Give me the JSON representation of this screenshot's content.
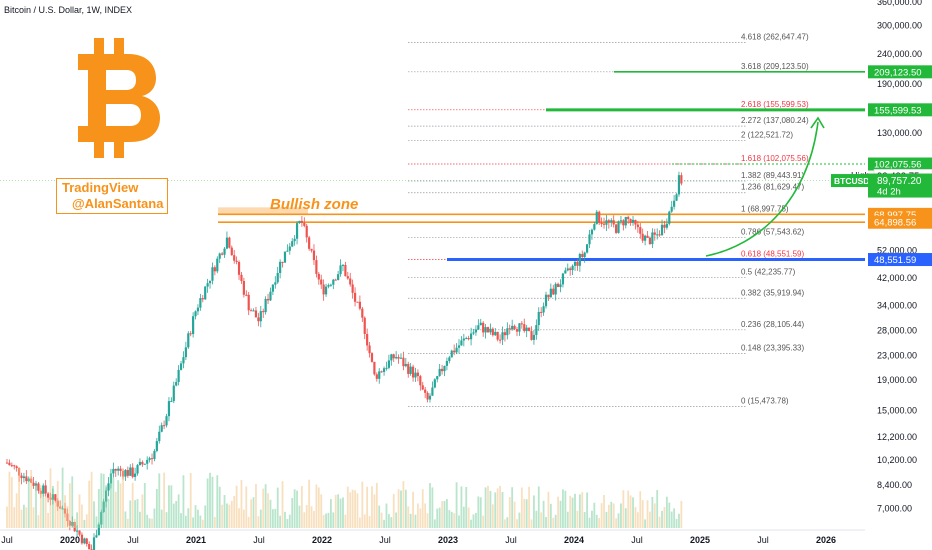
{
  "header": {
    "title": "Bitcoin / U.S. Dollar, 1W, INDEX"
  },
  "watermark": {
    "line1": "TradingView",
    "line2": "@AlanSantana"
  },
  "annotations": {
    "zone_label": "Bullish zone"
  },
  "colors": {
    "up": "#26a69a",
    "down": "#ef5350",
    "accent": "#f7931a",
    "target": "#22b83a",
    "support": "#2962ff",
    "fib_red": "#f23645"
  },
  "chart_data": {
    "type": "candlestick",
    "title": "Bitcoin / U.S. Dollar, 1W, INDEX",
    "scale": "log",
    "ylim": [
      6400,
      360000
    ],
    "x_ticks": [
      "Jul",
      "2020",
      "Jul",
      "2021",
      "Jul",
      "2022",
      "Jul",
      "2023",
      "Jul",
      "2024",
      "Jul",
      "2025",
      "Jul",
      "2026"
    ],
    "y_ticks": [
      "360,000.00",
      "300,000.00",
      "240,000.00",
      "190,000.00",
      "155,599.53",
      "130,000.00",
      "93,432.75",
      "89,757.20",
      "68,997.75",
      "64,898.56",
      "52,000.00",
      "48,551.59",
      "42,000.00",
      "34,000.00",
      "28,000.00",
      "23,000.00",
      "19,000.00",
      "15,000.00",
      "12,200.00",
      "10,200.00",
      "8,400.00",
      "7,000.00"
    ],
    "fib_levels": [
      {
        "label": "4.618 (262,647.47)",
        "value": 262647.47
      },
      {
        "label": "3.618 (209,123.50)",
        "value": 209123.5
      },
      {
        "label": "2.618 (155,599.53)",
        "value": 155599.53
      },
      {
        "label": "2.272 (137,080.24)",
        "value": 137080.24
      },
      {
        "label": "2 (122,521.72)",
        "value": 122521.72
      },
      {
        "label": "1.618 (102,075.56)",
        "value": 102075.56
      },
      {
        "label": "1.382 (89,443.91)",
        "value": 89443.91
      },
      {
        "label": "1.236 (81,629.47)",
        "value": 81629.47
      },
      {
        "label": "1 (68,997.75)",
        "value": 68997.75
      },
      {
        "label": "0.786 (57,543.62)",
        "value": 57543.62
      },
      {
        "label": "0.618 (48,551.59)",
        "value": 48551.59
      },
      {
        "label": "0.5 (42,235.77)",
        "value": 42235.77
      },
      {
        "label": "0.382 (35,919.94)",
        "value": 35919.94
      },
      {
        "label": "0.236 (28,105.44)",
        "value": 28105.44
      },
      {
        "label": "0.148 (23,395.33)",
        "value": 23395.33
      },
      {
        "label": "0 (15,473.78)",
        "value": 15473.78
      }
    ],
    "price_tags": [
      {
        "text": "209,123.50",
        "value": 209123.5,
        "color": "#22b83a"
      },
      {
        "text": "155,599.53",
        "value": 155599.53,
        "color": "#22b83a"
      },
      {
        "text": "102,075.56",
        "value": 102075.56,
        "color": "#22b83a"
      },
      {
        "text": "68,997.75",
        "value": 68997.75,
        "color": "#f7931a"
      },
      {
        "text": "64,898.56",
        "value": 64898.56,
        "color": "#f7931a"
      },
      {
        "text": "48,551.59",
        "value": 48551.59,
        "color": "#2962ff"
      }
    ],
    "current": {
      "symbol": "BTCUSD",
      "price": "89,757.20",
      "countdown": "4d 2h",
      "high_label": "High",
      "high_value": "93,432.75",
      "value": 89757.2
    },
    "bullish_zone": [
      64898.56,
      68997.75
    ],
    "anchors": [
      [
        "2019-07",
        10000
      ],
      [
        "2019-10",
        8300
      ],
      [
        "2019-12",
        7200
      ],
      [
        "2020-03",
        5000
      ],
      [
        "2020-05",
        9500
      ],
      [
        "2020-07",
        9200
      ],
      [
        "2020-09",
        10800
      ],
      [
        "2020-11",
        18000
      ],
      [
        "2021-01",
        33000
      ],
      [
        "2021-04",
        58000
      ],
      [
        "2021-06",
        34000
      ],
      [
        "2021-07",
        30000
      ],
      [
        "2021-09",
        47000
      ],
      [
        "2021-11",
        66000
      ],
      [
        "2022-01",
        38000
      ],
      [
        "2022-03",
        46000
      ],
      [
        "2022-05",
        29000
      ],
      [
        "2022-06",
        19500
      ],
      [
        "2022-08",
        23000
      ],
      [
        "2022-10",
        19500
      ],
      [
        "2022-11",
        16000
      ],
      [
        "2023-01",
        23000
      ],
      [
        "2023-04",
        29000
      ],
      [
        "2023-06",
        26000
      ],
      [
        "2023-07",
        30000
      ],
      [
        "2023-09",
        26500
      ],
      [
        "2023-10",
        34500
      ],
      [
        "2023-12",
        42000
      ],
      [
        "2024-02",
        51000
      ],
      [
        "2024-03",
        68000
      ],
      [
        "2024-05",
        62000
      ],
      [
        "2024-06",
        67000
      ],
      [
        "2024-08",
        56000
      ],
      [
        "2024-09",
        59000
      ],
      [
        "2024-10",
        68500
      ],
      [
        "2024-11",
        89757
      ]
    ]
  }
}
